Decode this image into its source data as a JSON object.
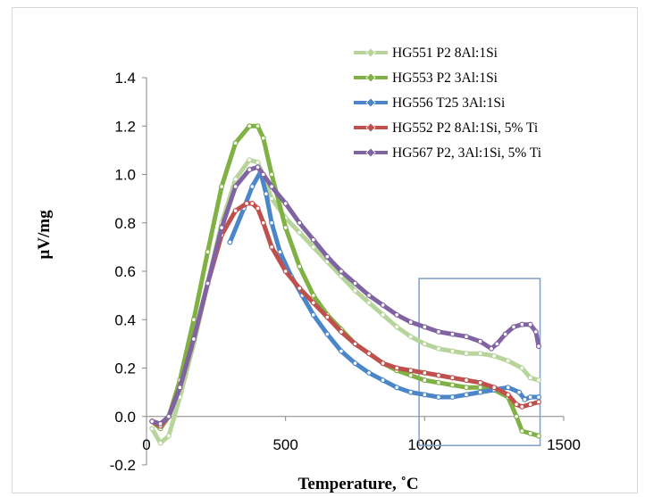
{
  "chart_data": {
    "type": "line",
    "title": "",
    "xlabel": "Temperature, ˚C",
    "ylabel": "µV/mg",
    "xlim": [
      0,
      1500
    ],
    "ylim": [
      -0.2,
      1.4
    ],
    "xticks": [
      "0",
      "500",
      "1000",
      "1500"
    ],
    "yticks": [
      "-0.2",
      "0.0",
      "0.2",
      "0.4",
      "0.6",
      "0.8",
      "1.0",
      "1.2",
      "1.4"
    ],
    "grid": false,
    "legend_position": "top-right",
    "annotation": {
      "type": "rectangle",
      "x": [
        980,
        1415
      ],
      "y": [
        -0.12,
        0.57
      ],
      "color": "#7f9fc8"
    },
    "series": [
      {
        "name": "HG551 P2 8Al:1Si",
        "color": "#b7d59a",
        "x": [
          20,
          50,
          80,
          120,
          170,
          220,
          270,
          320,
          370,
          400,
          420,
          450,
          500,
          550,
          600,
          650,
          700,
          750,
          800,
          850,
          900,
          950,
          1000,
          1050,
          1100,
          1150,
          1200,
          1250,
          1300,
          1350,
          1380,
          1410
        ],
        "y": [
          -0.05,
          -0.11,
          -0.08,
          0.08,
          0.3,
          0.55,
          0.8,
          0.98,
          1.06,
          1.05,
          0.99,
          0.9,
          0.82,
          0.76,
          0.7,
          0.64,
          0.58,
          0.52,
          0.47,
          0.42,
          0.37,
          0.33,
          0.3,
          0.28,
          0.27,
          0.26,
          0.26,
          0.25,
          0.23,
          0.2,
          0.16,
          0.15
        ]
      },
      {
        "name": "HG553 P2 3Al:1Si",
        "color": "#7fb144",
        "x": [
          20,
          50,
          80,
          120,
          170,
          220,
          270,
          320,
          370,
          400,
          420,
          450,
          500,
          550,
          600,
          650,
          700,
          750,
          800,
          850,
          900,
          950,
          1000,
          1050,
          1100,
          1150,
          1200,
          1250,
          1300,
          1330,
          1350,
          1380,
          1410
        ],
        "y": [
          -0.02,
          -0.05,
          0.0,
          0.15,
          0.4,
          0.68,
          0.95,
          1.13,
          1.2,
          1.2,
          1.15,
          1.0,
          0.78,
          0.62,
          0.5,
          0.42,
          0.36,
          0.3,
          0.26,
          0.22,
          0.19,
          0.17,
          0.15,
          0.14,
          0.13,
          0.12,
          0.12,
          0.11,
          0.08,
          0.0,
          -0.06,
          -0.07,
          -0.08
        ]
      },
      {
        "name": "HG556 T25 3Al:1Si",
        "color": "#4a86c8",
        "x": [
          300,
          350,
          380,
          410,
          430,
          450,
          480,
          520,
          560,
          600,
          650,
          700,
          750,
          800,
          850,
          900,
          950,
          1000,
          1050,
          1100,
          1150,
          1200,
          1250,
          1300,
          1340,
          1360,
          1380,
          1410
        ],
        "y": [
          0.72,
          0.86,
          0.95,
          1.01,
          0.92,
          0.8,
          0.68,
          0.58,
          0.5,
          0.42,
          0.34,
          0.27,
          0.22,
          0.18,
          0.15,
          0.12,
          0.1,
          0.09,
          0.08,
          0.08,
          0.09,
          0.1,
          0.11,
          0.12,
          0.1,
          0.07,
          0.08,
          0.08
        ]
      },
      {
        "name": "HG552 P2 8Al:1Si, 5% Ti",
        "color": "#c0504d",
        "x": [
          20,
          50,
          80,
          120,
          170,
          220,
          270,
          320,
          360,
          380,
          400,
          420,
          450,
          500,
          550,
          600,
          650,
          700,
          750,
          800,
          850,
          900,
          950,
          1000,
          1050,
          1100,
          1150,
          1200,
          1250,
          1300,
          1330,
          1350,
          1380,
          1410
        ],
        "y": [
          -0.02,
          -0.04,
          0.0,
          0.12,
          0.32,
          0.55,
          0.75,
          0.85,
          0.88,
          0.88,
          0.86,
          0.8,
          0.7,
          0.6,
          0.53,
          0.47,
          0.41,
          0.35,
          0.3,
          0.26,
          0.22,
          0.2,
          0.19,
          0.18,
          0.17,
          0.16,
          0.15,
          0.14,
          0.12,
          0.09,
          0.05,
          0.04,
          0.05,
          0.06
        ]
      },
      {
        "name": "HG567 P2, 3Al:1Si, 5% Ti",
        "color": "#8064a2",
        "x": [
          20,
          50,
          80,
          120,
          170,
          220,
          270,
          320,
          370,
          400,
          420,
          450,
          500,
          550,
          600,
          650,
          700,
          750,
          800,
          850,
          900,
          950,
          1000,
          1050,
          1100,
          1150,
          1200,
          1240,
          1260,
          1290,
          1320,
          1350,
          1380,
          1400,
          1410
        ],
        "y": [
          -0.02,
          -0.03,
          0.0,
          0.12,
          0.32,
          0.55,
          0.78,
          0.95,
          1.02,
          1.03,
          1.0,
          0.95,
          0.88,
          0.8,
          0.73,
          0.66,
          0.6,
          0.55,
          0.5,
          0.46,
          0.42,
          0.39,
          0.37,
          0.35,
          0.34,
          0.33,
          0.31,
          0.28,
          0.3,
          0.34,
          0.37,
          0.38,
          0.38,
          0.35,
          0.29
        ]
      }
    ]
  }
}
